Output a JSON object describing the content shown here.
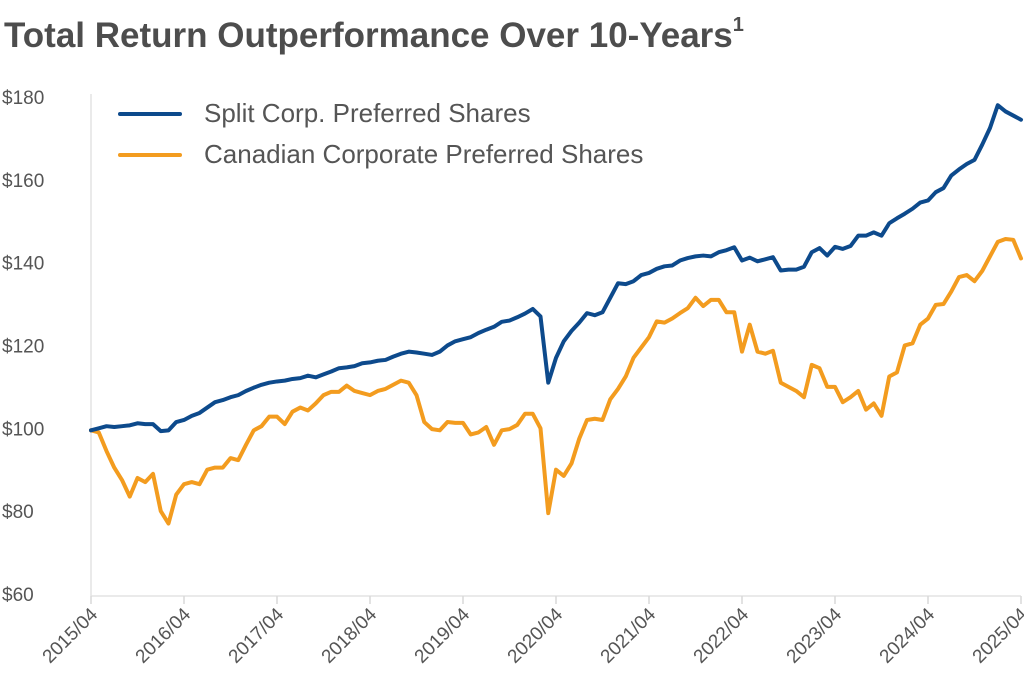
{
  "chart_data": {
    "type": "line",
    "title": "Total Return Outperformance Over 10-Years",
    "title_note": "1",
    "categories": [
      "2015/04",
      null,
      null,
      null,
      null,
      null,
      null,
      null,
      null,
      null,
      null,
      null,
      "2016/04",
      null,
      null,
      null,
      null,
      null,
      null,
      null,
      null,
      null,
      null,
      null,
      "2017/04",
      null,
      null,
      null,
      null,
      null,
      null,
      null,
      null,
      null,
      null,
      null,
      "2018/04",
      null,
      null,
      null,
      null,
      null,
      null,
      null,
      null,
      null,
      null,
      null,
      "2019/04",
      null,
      null,
      null,
      null,
      null,
      null,
      null,
      null,
      null,
      null,
      null,
      "2020/04",
      null,
      null,
      null,
      null,
      null,
      null,
      null,
      null,
      null,
      null,
      null,
      "2021/04",
      null,
      null,
      null,
      null,
      null,
      null,
      null,
      null,
      null,
      null,
      null,
      "2022/04",
      null,
      null,
      null,
      null,
      null,
      null,
      null,
      null,
      null,
      null,
      null,
      "2023/04",
      null,
      null,
      null,
      null,
      null,
      null,
      null,
      null,
      null,
      null,
      null,
      "2024/04",
      null,
      null,
      null,
      null,
      null,
      null,
      null,
      null,
      null,
      null,
      null,
      "2025/04"
    ],
    "series": [
      {
        "name": "Split Corp. Preferred Shares",
        "color": "#0d4a8c",
        "values": [
          100,
          100.5,
          101,
          100.8,
          101,
          101.2,
          101.7,
          101.5,
          101.5,
          99.8,
          100,
          102,
          102.5,
          103.5,
          104.2,
          105.5,
          106.8,
          107.3,
          108,
          108.5,
          109.5,
          110.3,
          111,
          111.5,
          111.8,
          112,
          112.4,
          112.6,
          113.2,
          112.8,
          113.5,
          114.2,
          115,
          115.2,
          115.5,
          116.2,
          116.4,
          116.8,
          117,
          117.8,
          118.5,
          119,
          118.8,
          118.5,
          118.2,
          119,
          120.5,
          121.5,
          122,
          122.5,
          123.5,
          124.3,
          125,
          126.2,
          126.5,
          127.3,
          128.2,
          129.3,
          127.5,
          111.5,
          117.5,
          121.5,
          124,
          126,
          128.3,
          127.8,
          128.5,
          132,
          135.5,
          135.3,
          136,
          137.5,
          138,
          139,
          139.6,
          139.8,
          141,
          141.6,
          142,
          142.2,
          142,
          143,
          143.5,
          144.2,
          141,
          141.7,
          140.8,
          141.3,
          141.8,
          138.6,
          138.8,
          138.8,
          139.5,
          143,
          144,
          142.2,
          144.3,
          143.8,
          144.5,
          147,
          147,
          147.8,
          147,
          150,
          151.2,
          152.3,
          153.5,
          155,
          155.5,
          157.5,
          158.5,
          161.5,
          163,
          164.3,
          165.3,
          169,
          173,
          178.5,
          177,
          176,
          175
        ]
      },
      {
        "name": "Canadian Corporate Preferred Shares",
        "color": "#f39c1f",
        "values": [
          100,
          99.5,
          95,
          91,
          88,
          84,
          88.5,
          87.5,
          89.5,
          80.5,
          77.5,
          84.5,
          87,
          87.5,
          87,
          90.5,
          91,
          91,
          93.3,
          92.8,
          96.5,
          100,
          101,
          103.3,
          103.3,
          101.5,
          104.5,
          105.5,
          104.8,
          106.5,
          108.5,
          109.3,
          109.3,
          110.8,
          109.5,
          109,
          108.5,
          109.5,
          110,
          111,
          112,
          111.5,
          108.5,
          102,
          100.3,
          100,
          102,
          101.8,
          101.8,
          99,
          99.5,
          100.8,
          96.5,
          100,
          100.3,
          101.3,
          104,
          104,
          100.5,
          80,
          90.5,
          89,
          92,
          98,
          102.5,
          102.8,
          102.5,
          107.5,
          110,
          113,
          117.5,
          120,
          122.5,
          126.3,
          126,
          127,
          128.3,
          129.5,
          132,
          130,
          131.5,
          131.5,
          128.5,
          128.5,
          119,
          125.5,
          119,
          118.5,
          119.2,
          111.5,
          110.5,
          109.5,
          108,
          115.8,
          115,
          110.5,
          110.5,
          106.8,
          108,
          109.5,
          105,
          106.5,
          103.5,
          113,
          114,
          120.5,
          121,
          125.5,
          127,
          130.3,
          130.5,
          133.5,
          137,
          137.5,
          136,
          138.5,
          142,
          145.5,
          146.2,
          146,
          141.5
        ]
      }
    ],
    "ylim": [
      60,
      180
    ],
    "yticks": [
      {
        "value": 60,
        "label": "$60"
      },
      {
        "value": 80,
        "label": "$80"
      },
      {
        "value": 100,
        "label": "$100"
      },
      {
        "value": 120,
        "label": "$120"
      },
      {
        "value": 140,
        "label": "$140"
      },
      {
        "value": 160,
        "label": "$160"
      },
      {
        "value": 180,
        "label": "$180"
      }
    ],
    "grid": false,
    "legend": "top-left"
  }
}
